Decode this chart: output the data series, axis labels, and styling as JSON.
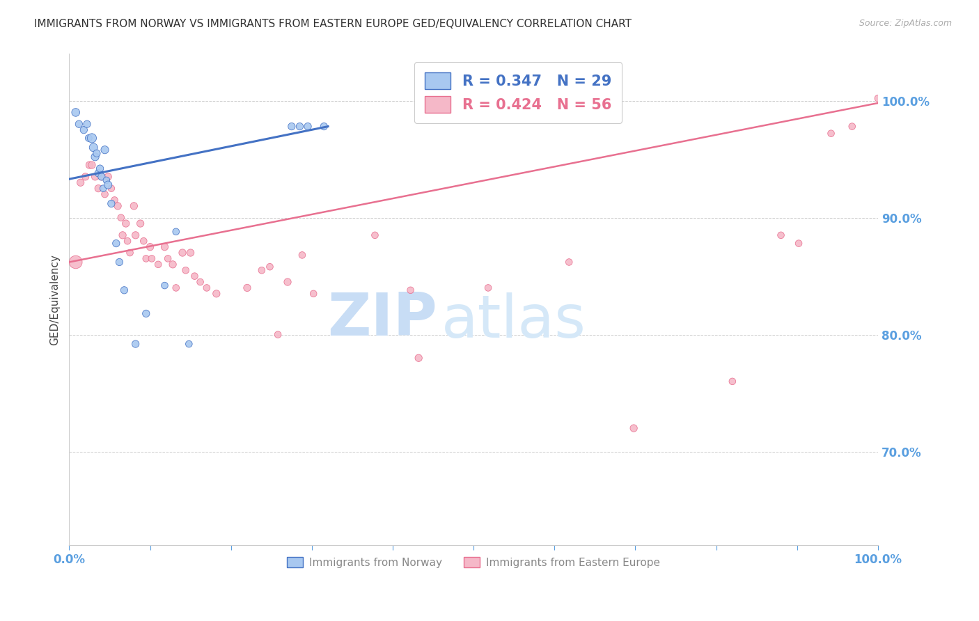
{
  "title": "IMMIGRANTS FROM NORWAY VS IMMIGRANTS FROM EASTERN EUROPE GED/EQUIVALENCY CORRELATION CHART",
  "source_text": "Source: ZipAtlas.com",
  "ylabel": "GED/Equivalency",
  "xlim": [
    0.0,
    1.0
  ],
  "ylim": [
    0.62,
    1.04
  ],
  "yticks": [
    0.7,
    0.8,
    0.9,
    1.0
  ],
  "ytick_labels": [
    "70.0%",
    "80.0%",
    "90.0%",
    "100.0%"
  ],
  "xticks": [
    0.0,
    0.1,
    0.2,
    0.3,
    0.4,
    0.5,
    0.6,
    0.7,
    0.8,
    0.9,
    1.0
  ],
  "blue_R": 0.347,
  "blue_N": 29,
  "pink_R": 0.424,
  "pink_N": 56,
  "blue_color": "#a8c8f0",
  "pink_color": "#f5b8c8",
  "blue_line_color": "#4472c4",
  "pink_line_color": "#e87090",
  "watermark_zip": "ZIP",
  "watermark_atlas": "atlas",
  "watermark_color": "#ddeeff",
  "legend_label_blue": "Immigrants from Norway",
  "legend_label_pink": "Immigrants from Eastern Europe",
  "blue_line_x": [
    0.0,
    0.32
  ],
  "blue_line_y": [
    0.933,
    0.978
  ],
  "pink_line_x": [
    0.0,
    1.0
  ],
  "pink_line_y": [
    0.862,
    0.998
  ],
  "blue_scatter_x": [
    0.008,
    0.012,
    0.018,
    0.022,
    0.024,
    0.028,
    0.03,
    0.032,
    0.034,
    0.036,
    0.038,
    0.04,
    0.042,
    0.044,
    0.046,
    0.048,
    0.052,
    0.058,
    0.062,
    0.068,
    0.082,
    0.095,
    0.118,
    0.132,
    0.148,
    0.275,
    0.285,
    0.295,
    0.315
  ],
  "blue_scatter_y": [
    0.99,
    0.98,
    0.975,
    0.98,
    0.968,
    0.968,
    0.96,
    0.952,
    0.955,
    0.938,
    0.942,
    0.935,
    0.925,
    0.958,
    0.932,
    0.928,
    0.912,
    0.878,
    0.862,
    0.838,
    0.792,
    0.818,
    0.842,
    0.888,
    0.792,
    0.978,
    0.978,
    0.978,
    0.978
  ],
  "blue_scatter_sizes": [
    70,
    55,
    55,
    55,
    50,
    90,
    75,
    65,
    55,
    55,
    55,
    55,
    48,
    65,
    48,
    65,
    55,
    55,
    55,
    55,
    55,
    55,
    48,
    48,
    48,
    55,
    55,
    55,
    55
  ],
  "pink_scatter_x": [
    0.008,
    0.014,
    0.02,
    0.025,
    0.028,
    0.032,
    0.036,
    0.04,
    0.044,
    0.048,
    0.052,
    0.056,
    0.06,
    0.064,
    0.066,
    0.07,
    0.072,
    0.075,
    0.08,
    0.082,
    0.088,
    0.092,
    0.095,
    0.1,
    0.102,
    0.11,
    0.118,
    0.122,
    0.128,
    0.132,
    0.14,
    0.144,
    0.15,
    0.155,
    0.162,
    0.17,
    0.182,
    0.22,
    0.238,
    0.248,
    0.258,
    0.27,
    0.288,
    0.302,
    0.378,
    0.422,
    0.432,
    0.518,
    0.618,
    0.698,
    0.82,
    0.88,
    0.902,
    0.942,
    0.968,
    1.0
  ],
  "pink_scatter_y": [
    0.862,
    0.93,
    0.935,
    0.945,
    0.945,
    0.935,
    0.925,
    0.935,
    0.92,
    0.935,
    0.925,
    0.915,
    0.91,
    0.9,
    0.885,
    0.895,
    0.88,
    0.87,
    0.91,
    0.885,
    0.895,
    0.88,
    0.865,
    0.875,
    0.865,
    0.86,
    0.875,
    0.865,
    0.86,
    0.84,
    0.87,
    0.855,
    0.87,
    0.85,
    0.845,
    0.84,
    0.835,
    0.84,
    0.855,
    0.858,
    0.8,
    0.845,
    0.868,
    0.835,
    0.885,
    0.838,
    0.78,
    0.84,
    0.862,
    0.72,
    0.76,
    0.885,
    0.878,
    0.972,
    0.978,
    1.002
  ],
  "pink_scatter_sizes": [
    180,
    55,
    55,
    55,
    55,
    55,
    55,
    55,
    48,
    55,
    48,
    48,
    55,
    48,
    55,
    55,
    48,
    48,
    55,
    55,
    55,
    48,
    48,
    55,
    48,
    48,
    55,
    48,
    55,
    48,
    55,
    48,
    55,
    48,
    48,
    48,
    55,
    55,
    48,
    48,
    48,
    55,
    48,
    48,
    48,
    48,
    55,
    48,
    48,
    55,
    48,
    48,
    48,
    48,
    48,
    48
  ]
}
